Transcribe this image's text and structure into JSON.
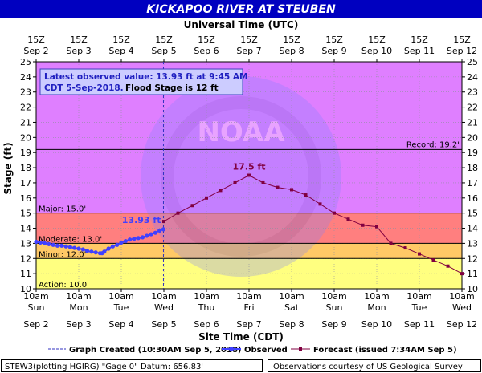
{
  "chart_data": {
    "type": "line",
    "title": "KICKAPOO RIVER AT STEUBEN",
    "top_axis_label": "Universal Time (UTC)",
    "top_ticks": [
      {
        "hour": "15Z",
        "date": "Sep 2"
      },
      {
        "hour": "15Z",
        "date": "Sep 3"
      },
      {
        "hour": "15Z",
        "date": "Sep 4"
      },
      {
        "hour": "15Z",
        "date": "Sep 5"
      },
      {
        "hour": "15Z",
        "date": "Sep 6"
      },
      {
        "hour": "15Z",
        "date": "Sep 7"
      },
      {
        "hour": "15Z",
        "date": "Sep 8"
      },
      {
        "hour": "15Z",
        "date": "Sep 9"
      },
      {
        "hour": "15Z",
        "date": "Sep 10"
      },
      {
        "hour": "15Z",
        "date": "Sep 11"
      },
      {
        "hour": "15Z",
        "date": "Sep 12"
      }
    ],
    "x_ticks": [
      {
        "time": "10am",
        "day": "Sun",
        "date": "Sep 2"
      },
      {
        "time": "10am",
        "day": "Mon",
        "date": "Sep 3"
      },
      {
        "time": "10am",
        "day": "Tue",
        "date": "Sep 4"
      },
      {
        "time": "10am",
        "day": "Wed",
        "date": "Sep 5"
      },
      {
        "time": "10am",
        "day": "Thu",
        "date": "Sep 6"
      },
      {
        "time": "10am",
        "day": "Fri",
        "date": "Sep 7"
      },
      {
        "time": "10am",
        "day": "Sat",
        "date": "Sep 8"
      },
      {
        "time": "10am",
        "day": "Sun",
        "date": "Sep 9"
      },
      {
        "time": "10am",
        "day": "Mon",
        "date": "Sep 10"
      },
      {
        "time": "10am",
        "day": "Tue",
        "date": "Sep 11"
      },
      {
        "time": "10am",
        "day": "Wed",
        "date": "Sep 12"
      }
    ],
    "xlabel": "Site Time (CDT)",
    "ylabel": "Stage (ft)",
    "ylim": [
      10,
      25
    ],
    "yticks": [
      10,
      11,
      12,
      13,
      14,
      15,
      16,
      17,
      18,
      19,
      20,
      21,
      22,
      23,
      24,
      25
    ],
    "grid": true,
    "watermark": "NOAA",
    "thresholds": [
      {
        "name": "Action",
        "label": "Action: 10.0'",
        "value": 10.0,
        "color": "#ffff80"
      },
      {
        "name": "Minor",
        "label": "Minor: 12.0'",
        "value": 12.0,
        "color": "#ffc966"
      },
      {
        "name": "Moderate",
        "label": "Moderate: 13.0'",
        "value": 13.0,
        "color": "#ff7f7f"
      },
      {
        "name": "Major",
        "label": "Major: 15.0'",
        "value": 15.0,
        "color": "#df7fff"
      }
    ],
    "record": {
      "label": "Record: 19.2'",
      "value": 19.2
    },
    "info_box": {
      "line1": "Latest observed value: 13.93 ft at 9:45 AM",
      "line2_prefix": "CDT 5-Sep-2018.",
      "line2_suffix": "Flood Stage is 12 ft"
    },
    "observed_label": "13.93 ft",
    "crest_label": "17.5 ft",
    "series": [
      {
        "name": "Observed",
        "color": "#4040ff",
        "x_days": [
          0.0,
          0.1,
          0.2,
          0.3,
          0.4,
          0.5,
          0.6,
          0.7,
          0.8,
          0.9,
          1.0,
          1.1,
          1.2,
          1.3,
          1.4,
          1.5,
          1.55,
          1.6,
          1.7,
          1.8,
          1.9,
          2.0,
          2.1,
          2.2,
          2.3,
          2.4,
          2.5,
          2.6,
          2.7,
          2.8,
          2.9,
          2.99
        ],
        "values": [
          13.1,
          13.05,
          13.0,
          12.95,
          12.9,
          12.85,
          12.85,
          12.8,
          12.75,
          12.7,
          12.65,
          12.6,
          12.5,
          12.45,
          12.4,
          12.35,
          12.35,
          12.45,
          12.65,
          12.8,
          12.9,
          13.05,
          13.15,
          13.25,
          13.3,
          13.35,
          13.4,
          13.5,
          13.6,
          13.7,
          13.85,
          13.93
        ]
      },
      {
        "name": "Forecast (issued 7:34AM Sep 5)",
        "color": "#800040",
        "x_days": [
          3.0,
          3.33,
          3.67,
          4.0,
          4.33,
          4.67,
          5.0,
          5.33,
          5.67,
          6.0,
          6.33,
          6.67,
          7.0,
          7.33,
          7.67,
          8.0,
          8.33,
          8.67,
          9.0,
          9.33,
          9.67,
          10.0
        ],
        "values": [
          14.45,
          15.0,
          15.5,
          16.0,
          16.5,
          17.0,
          17.5,
          17.0,
          16.7,
          16.55,
          16.2,
          15.6,
          15.0,
          14.6,
          14.2,
          14.1,
          13.0,
          12.7,
          12.3,
          11.9,
          11.5,
          11.0
        ]
      }
    ]
  },
  "legend": {
    "graph_created": "Graph Created (10:30AM Sep 5, 2018)",
    "observed": "Observed",
    "forecast": "Forecast (issued 7:34AM Sep 5)"
  },
  "footer": {
    "station": "STEW3(plotting HGIRG) \"Gage 0\" Datum: 656.83'",
    "courtesy": "Observations courtesy of US Geological Survey"
  },
  "colors": {
    "title_bg": "#0000c0",
    "title_text": "#ffffff",
    "observed": "#4040ff",
    "forecast": "#800040",
    "now_line": "#3030c0"
  }
}
